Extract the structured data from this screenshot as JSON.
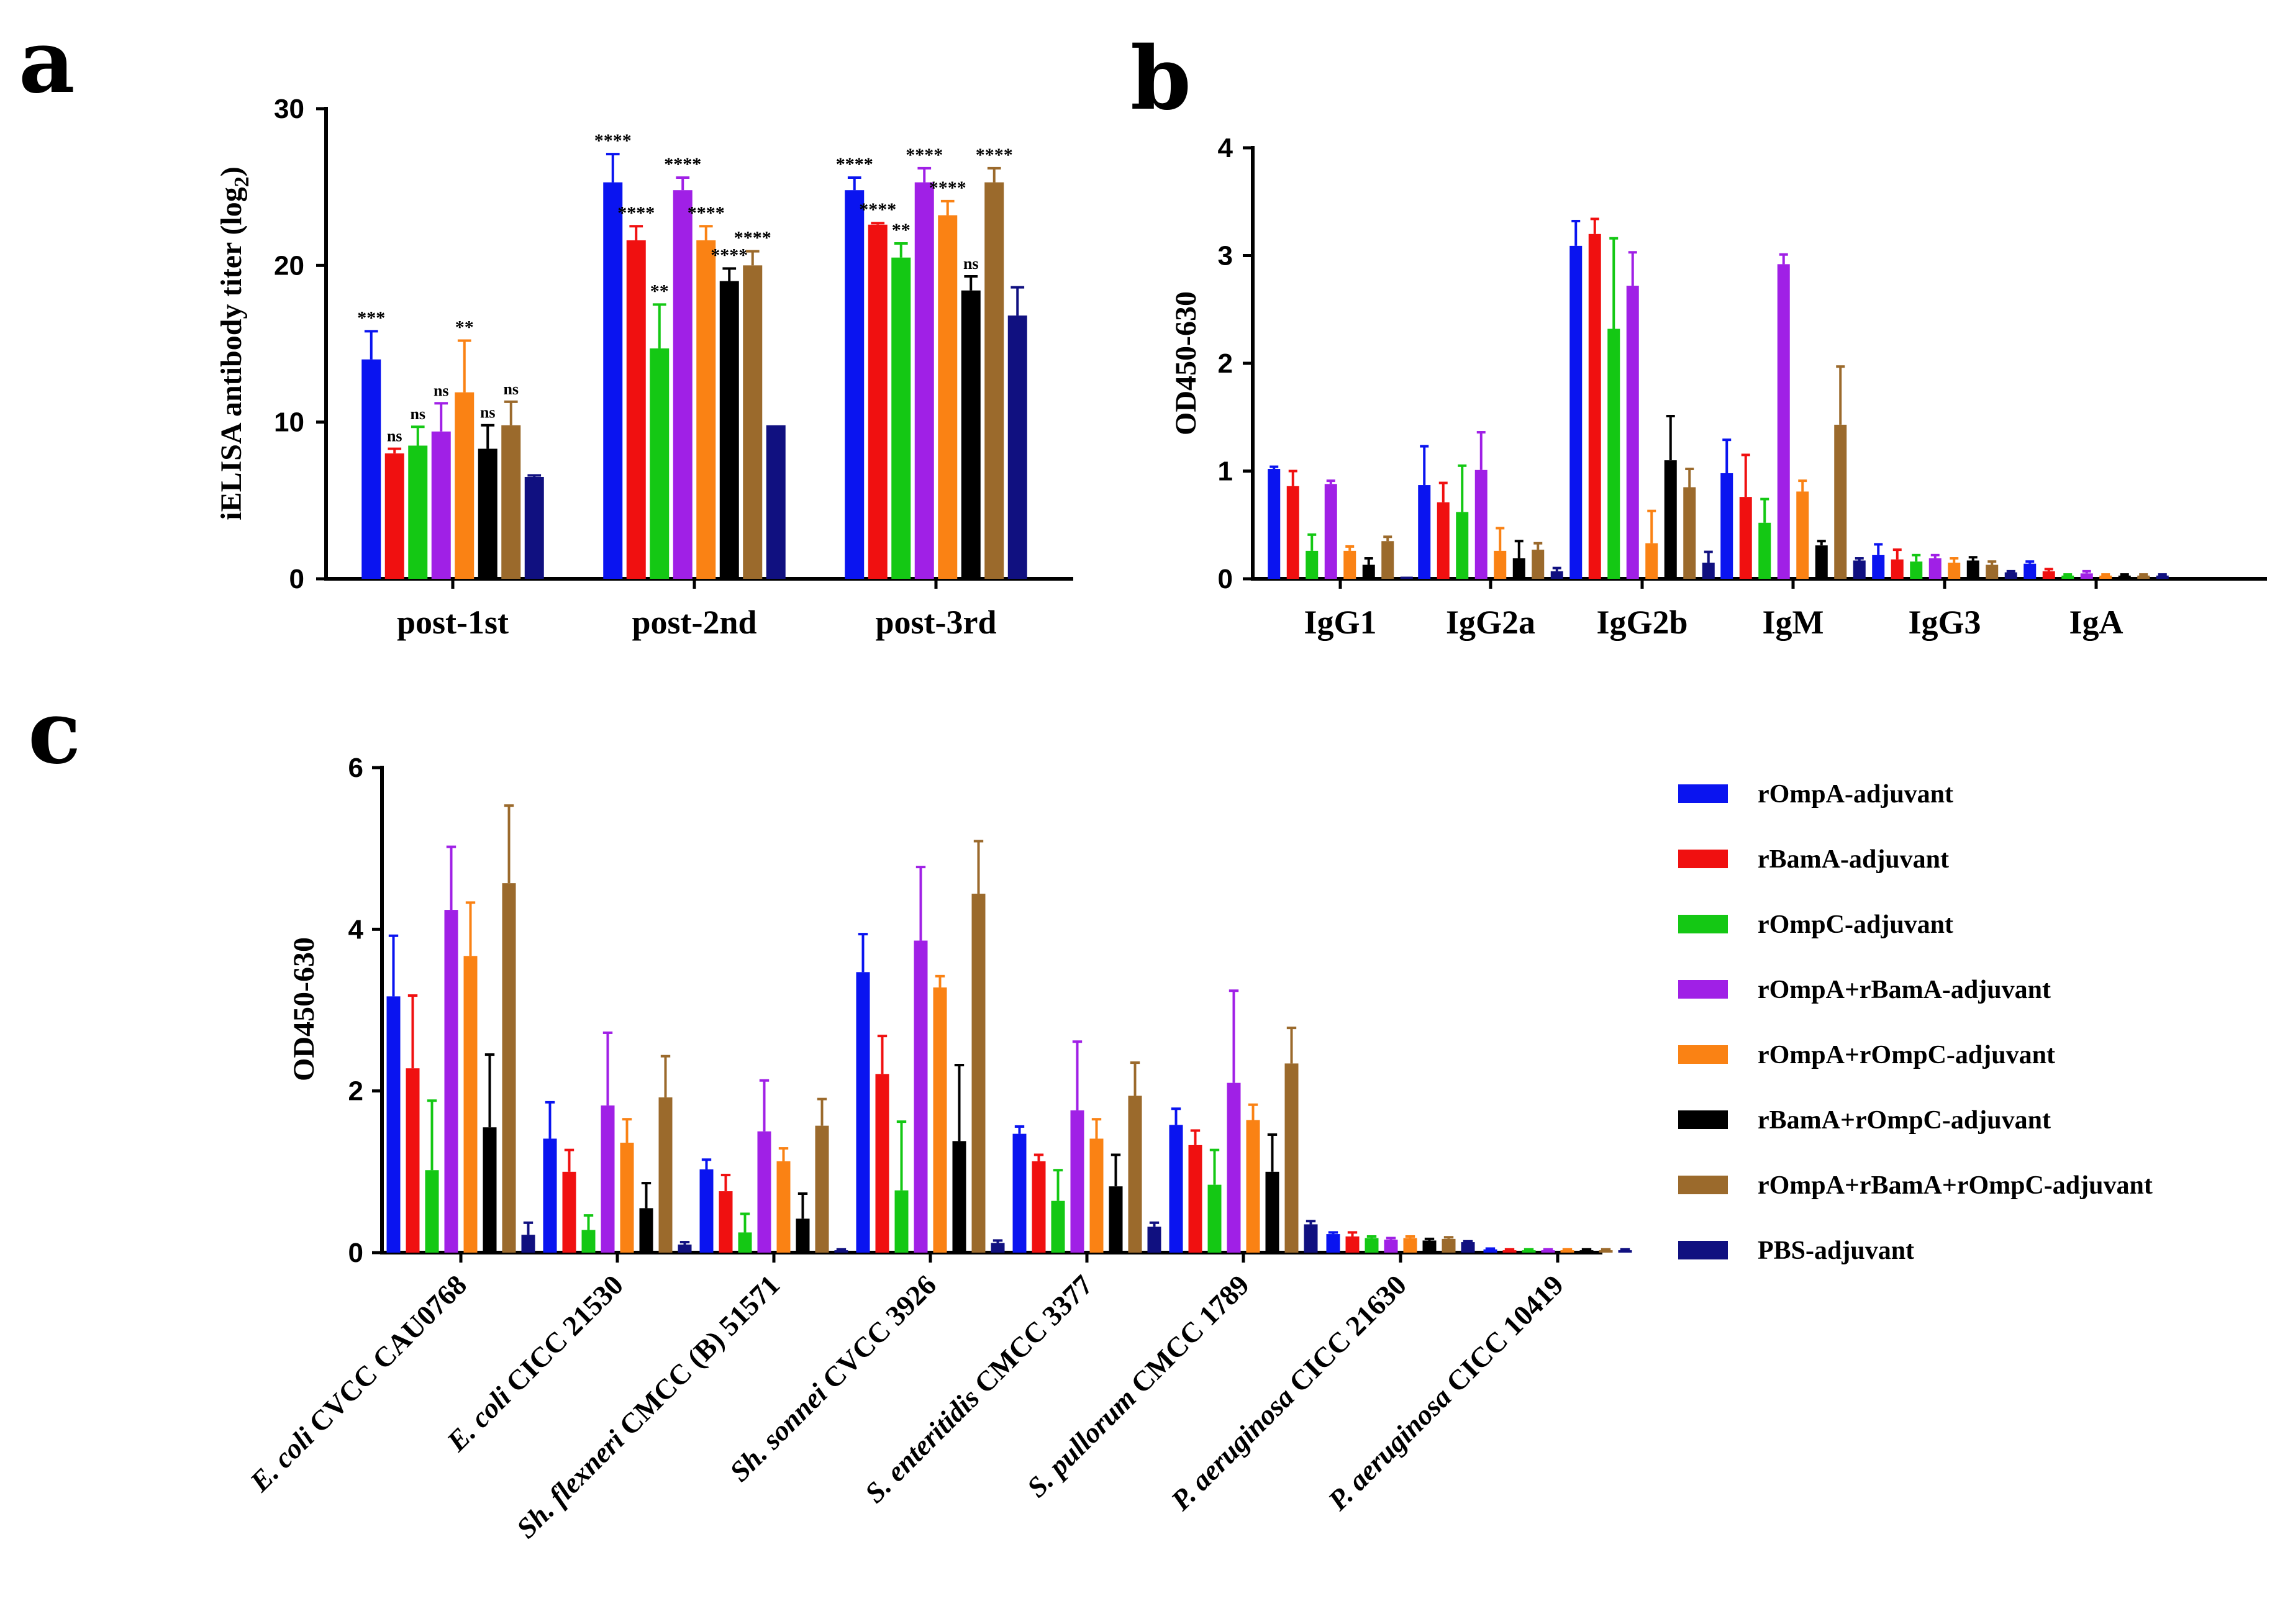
{
  "series": [
    {
      "name": "rOmpA-adjuvant",
      "color": "#0a14f0"
    },
    {
      "name": "rBamA-adjuvant",
      "color": "#f01010"
    },
    {
      "name": "rOmpC-adjuvant",
      "color": "#14c814"
    },
    {
      "name": "rOmpA+rBamA-adjuvant",
      "color": "#a020e6"
    },
    {
      "name": "rOmpA+rOmpC-adjuvant",
      "color": "#fa8214"
    },
    {
      "name": "rBamA+rOmpC-adjuvant",
      "color": "#000000"
    },
    {
      "name": "rOmpA+rBamA+rOmpC-adjuvant",
      "color": "#9b6a2c"
    },
    {
      "name": "PBS-adjuvant",
      "color": "#101080"
    }
  ],
  "chart_data": [
    {
      "panel": "a",
      "type": "bar",
      "ylabel": "iELISA antibody titer (log",
      "ylabel_sub": "2",
      "ylabel_close": ")",
      "ylim": [
        0,
        30
      ],
      "yticks": [
        "0",
        "10",
        "20",
        "30"
      ],
      "categories": [
        "post-1st",
        "post-2nd",
        "post-3rd"
      ],
      "values": [
        [
          14.0,
          8.0,
          8.5,
          9.4,
          11.9,
          8.3,
          9.8,
          6.5
        ],
        [
          25.3,
          21.6,
          14.7,
          24.8,
          21.6,
          19.0,
          20.0,
          9.8
        ],
        [
          24.8,
          22.6,
          20.5,
          25.3,
          23.2,
          18.4,
          25.3,
          16.8
        ]
      ],
      "errors": [
        [
          1.8,
          0.3,
          1.2,
          1.8,
          3.3,
          1.5,
          1.5,
          0.1
        ],
        [
          1.8,
          0.9,
          2.8,
          0.8,
          0.9,
          0.8,
          0.9,
          0.0
        ],
        [
          0.8,
          0.1,
          0.9,
          0.9,
          0.9,
          0.9,
          0.9,
          1.8
        ]
      ],
      "significance": [
        [
          "***",
          "ns",
          "ns",
          "ns",
          "**",
          "ns",
          "ns",
          ""
        ],
        [
          "****",
          "****",
          "**",
          "****",
          "****",
          "****",
          "****",
          ""
        ],
        [
          "****",
          "****",
          "**",
          "****",
          "****",
          "ns",
          "****",
          ""
        ]
      ]
    },
    {
      "panel": "b",
      "type": "bar",
      "ylabel": "OD450-630",
      "ylim": [
        0,
        4
      ],
      "yticks": [
        "0",
        "1",
        "2",
        "3",
        "4"
      ],
      "categories": [
        "IgG1",
        "IgG2a",
        "IgG2b",
        "IgM",
        "IgG3",
        "IgA"
      ],
      "values": [
        [
          1.02,
          0.86,
          0.26,
          0.88,
          0.26,
          0.13,
          0.35,
          0.02
        ],
        [
          0.87,
          0.71,
          0.62,
          1.01,
          0.26,
          0.19,
          0.27,
          0.07
        ],
        [
          3.09,
          3.2,
          2.32,
          2.72,
          0.33,
          1.1,
          0.85,
          0.15
        ],
        [
          0.98,
          0.76,
          0.52,
          2.92,
          0.81,
          0.31,
          1.43,
          0.17
        ],
        [
          0.22,
          0.18,
          0.16,
          0.19,
          0.15,
          0.17,
          0.13,
          0.06
        ],
        [
          0.14,
          0.07,
          0.03,
          0.05,
          0.03,
          0.03,
          0.03,
          0.03
        ]
      ],
      "errors": [
        [
          0.02,
          0.14,
          0.15,
          0.03,
          0.04,
          0.06,
          0.04,
          0.0
        ],
        [
          0.36,
          0.18,
          0.43,
          0.35,
          0.21,
          0.16,
          0.06,
          0.03
        ],
        [
          0.23,
          0.14,
          0.84,
          0.31,
          0.3,
          0.41,
          0.17,
          0.1
        ],
        [
          0.31,
          0.39,
          0.22,
          0.09,
          0.1,
          0.04,
          0.54,
          0.02
        ],
        [
          0.1,
          0.09,
          0.06,
          0.03,
          0.04,
          0.03,
          0.03,
          0.01
        ],
        [
          0.02,
          0.02,
          0.01,
          0.02,
          0.01,
          0.01,
          0.01,
          0.01
        ]
      ]
    },
    {
      "panel": "c",
      "type": "bar",
      "ylabel": "OD450-630",
      "ylim": [
        0,
        6
      ],
      "yticks": [
        "0",
        "2",
        "4",
        "6"
      ],
      "categories": [
        {
          "italic": "E. coli",
          "rest": " CVCC CAU0768"
        },
        {
          "italic": "E. coli",
          "rest": " CICC 21530"
        },
        {
          "italic": "Sh. flexneri",
          "rest": " CMCC (B) 51571"
        },
        {
          "italic": "Sh. sonnei",
          "rest": " CVCC 3926"
        },
        {
          "italic": "S. enteritidis",
          "rest": " CMCC 3377"
        },
        {
          "italic": "S. pullorum",
          "rest": " CMCC 1789"
        },
        {
          "italic": "P. aeruginosa",
          "rest": " CICC 21630"
        },
        {
          "italic": "P. aeruginosa",
          "rest": " CICC 10419"
        }
      ],
      "values": [
        [
          3.17,
          2.28,
          1.02,
          4.24,
          3.67,
          1.55,
          4.57,
          0.22
        ],
        [
          1.41,
          1.0,
          0.28,
          1.82,
          1.36,
          0.55,
          1.92,
          0.1
        ],
        [
          1.03,
          0.76,
          0.25,
          1.5,
          1.13,
          0.42,
          1.57,
          0.03
        ],
        [
          3.47,
          2.21,
          0.77,
          3.86,
          3.28,
          1.38,
          4.44,
          0.12
        ],
        [
          1.47,
          1.13,
          0.64,
          1.76,
          1.41,
          0.82,
          1.94,
          0.32
        ],
        [
          1.58,
          1.33,
          0.84,
          2.1,
          1.64,
          1.0,
          2.34,
          0.35
        ],
        [
          0.23,
          0.2,
          0.18,
          0.16,
          0.18,
          0.15,
          0.17,
          0.13
        ],
        [
          0.04,
          0.03,
          0.03,
          0.03,
          0.03,
          0.03,
          0.03,
          0.03
        ]
      ],
      "errors": [
        [
          0.75,
          0.9,
          0.86,
          0.78,
          0.66,
          0.9,
          0.96,
          0.15
        ],
        [
          0.45,
          0.27,
          0.18,
          0.9,
          0.29,
          0.31,
          0.51,
          0.03
        ],
        [
          0.12,
          0.2,
          0.23,
          0.63,
          0.16,
          0.31,
          0.33,
          0.01
        ],
        [
          0.47,
          0.47,
          0.85,
          0.91,
          0.14,
          0.94,
          0.65,
          0.03
        ],
        [
          0.09,
          0.08,
          0.38,
          0.85,
          0.24,
          0.39,
          0.41,
          0.05
        ],
        [
          0.2,
          0.18,
          0.43,
          1.14,
          0.19,
          0.46,
          0.44,
          0.04
        ],
        [
          0.02,
          0.05,
          0.02,
          0.02,
          0.02,
          0.02,
          0.02,
          0.01
        ],
        [
          0.01,
          0.01,
          0.01,
          0.01,
          0.01,
          0.01,
          0.01,
          0.01
        ]
      ]
    }
  ]
}
